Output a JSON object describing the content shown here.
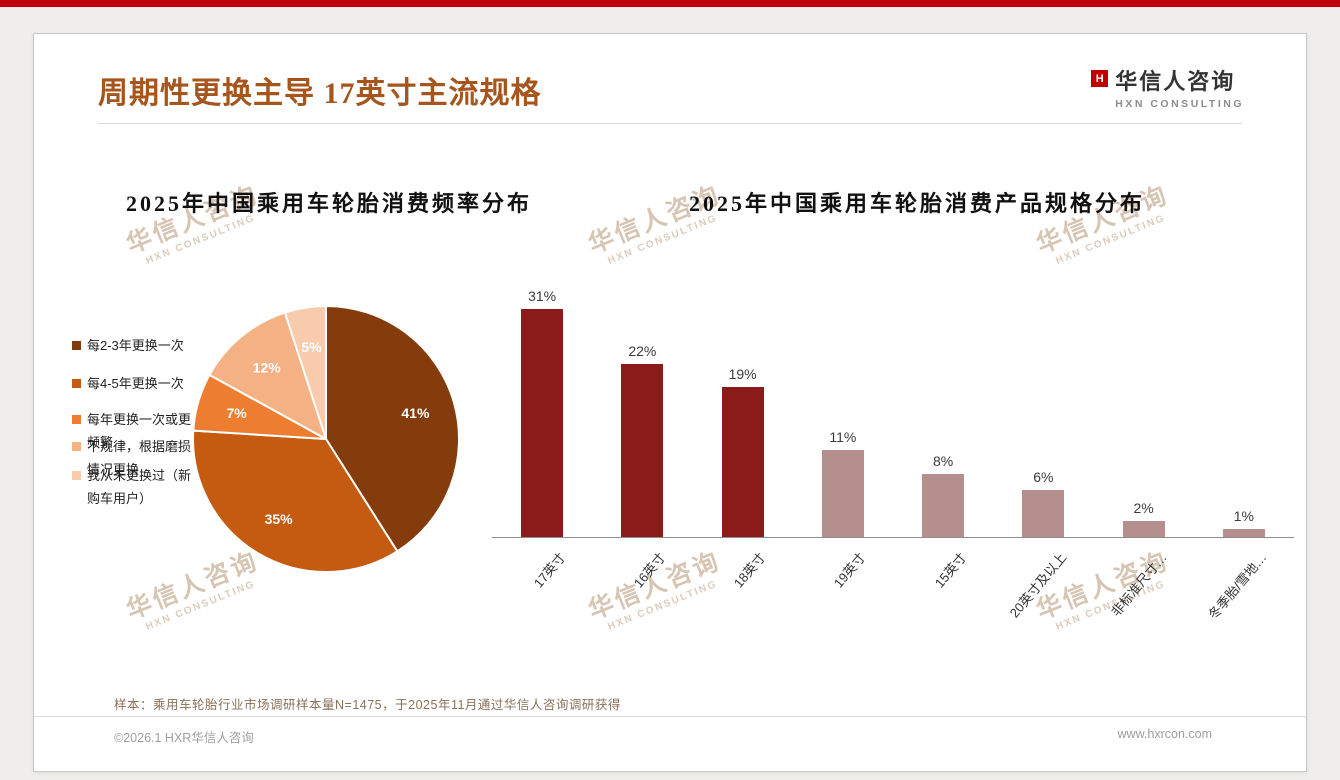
{
  "theme": {
    "accent_red": "#C00000",
    "title_brown": "#A6551D"
  },
  "header": {
    "title": "周期性更换主导 17英寸主流规格",
    "logo": {
      "icon": "H",
      "name": "华信人咨询",
      "subtitle": "HXN CONSULTING"
    }
  },
  "watermark": {
    "line1": "华信人咨询",
    "line2": "HXN CONSULTING"
  },
  "chart_data": [
    {
      "type": "pie",
      "title": "2025年中国乘用车轮胎消费频率分布",
      "labels": [
        "每2-3年更换一次",
        "每4-5年更换一次",
        "每年更换一次或更频繁",
        "不规律，根据磨损情况更换",
        "我从未更换过（新购车用户）"
      ],
      "values": [
        41,
        35,
        7,
        12,
        5
      ],
      "data_labels": [
        "41%",
        "35%",
        "7%",
        "12%",
        "5%"
      ],
      "colors": [
        "#843C0C",
        "#C55A11",
        "#ED7D31",
        "#F4B183",
        "#F8CBAD"
      ],
      "legend_position": "left",
      "start_angle_deg": 0,
      "direction": "clockwise"
    },
    {
      "type": "bar",
      "title": "2025年中国乘用车轮胎消费产品规格分布",
      "categories": [
        "17英寸",
        "16英寸",
        "18英寸",
        "19英寸",
        "15英寸",
        "20英寸及以上",
        "非标准尺寸…",
        "冬季胎/雪地…"
      ],
      "values": [
        31,
        22,
        19,
        11,
        8,
        6,
        2,
        1
      ],
      "data_labels": [
        "31%",
        "22%",
        "19%",
        "11%",
        "8%",
        "6%",
        "2%",
        "1%"
      ],
      "colors": [
        "#8B1A1A",
        "#8B1A1A",
        "#8B1A1A",
        "#B58E8E",
        "#B58E8E",
        "#B58E8E",
        "#B58E8E",
        "#B58E8E"
      ],
      "ylim": [
        0,
        31
      ],
      "grid": false,
      "xlabel": "",
      "ylabel": ""
    }
  ],
  "footer": {
    "sample_note": "样本：乘用车轮胎行业市场调研样本量N=1475，于2025年11月通过华信人咨询调研获得",
    "copyright": "©2026.1 HXR华信人咨询",
    "website": "www.hxrcon.com"
  }
}
